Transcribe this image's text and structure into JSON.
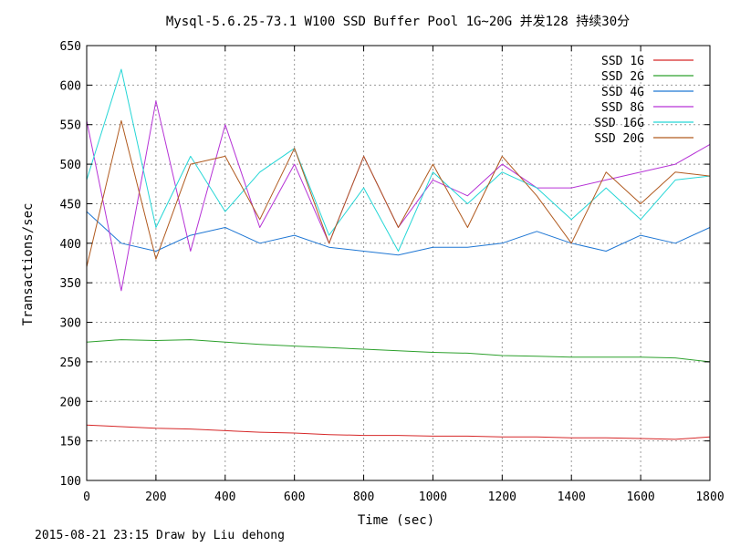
{
  "chart_data": {
    "type": "line",
    "title": "Mysql-5.6.25-73.1 W100 SSD Buffer Pool 1G~20G 并发128 持续30分",
    "xlabel": "Time (sec)",
    "ylabel": "Transactions/sec",
    "xlim": [
      0,
      1800
    ],
    "ylim": [
      100,
      650
    ],
    "xticks": [
      0,
      200,
      400,
      600,
      800,
      1000,
      1200,
      1400,
      1600,
      1800
    ],
    "yticks": [
      100,
      150,
      200,
      250,
      300,
      350,
      400,
      450,
      500,
      550,
      600,
      650
    ],
    "grid": true,
    "legend_position": "top-right",
    "x": [
      0,
      100,
      200,
      300,
      400,
      500,
      600,
      700,
      800,
      900,
      1000,
      1100,
      1200,
      1300,
      1400,
      1500,
      1600,
      1700,
      1800
    ],
    "series": [
      {
        "name": "SSD  1G",
        "color": "#d62728",
        "values": [
          170,
          168,
          166,
          165,
          163,
          161,
          160,
          158,
          157,
          157,
          156,
          156,
          155,
          155,
          154,
          154,
          153,
          152,
          155
        ]
      },
      {
        "name": "SSD  2G",
        "color": "#2ca02c",
        "values": [
          275,
          278,
          277,
          278,
          275,
          272,
          270,
          268,
          266,
          264,
          262,
          261,
          258,
          257,
          256,
          256,
          256,
          255,
          250
        ]
      },
      {
        "name": "SSD  4G",
        "color": "#1f77d4",
        "values": [
          440,
          400,
          390,
          410,
          420,
          400,
          410,
          395,
          390,
          385,
          395,
          395,
          400,
          415,
          400,
          390,
          410,
          400,
          420
        ]
      },
      {
        "name": "SSD  8G",
        "color": "#b633d6",
        "values": [
          555,
          340,
          580,
          390,
          550,
          420,
          500,
          400,
          510,
          420,
          480,
          460,
          500,
          470,
          470,
          480,
          490,
          500,
          525
        ]
      },
      {
        "name": "SSD  16G",
        "color": "#25d6d6",
        "values": [
          480,
          620,
          420,
          510,
          440,
          490,
          520,
          410,
          470,
          390,
          490,
          450,
          490,
          470,
          430,
          470,
          430,
          480,
          485
        ]
      },
      {
        "name": "SSD  20G",
        "color": "#b05a1f",
        "values": [
          370,
          555,
          380,
          500,
          510,
          430,
          520,
          400,
          510,
          420,
          500,
          420,
          510,
          460,
          400,
          490,
          450,
          490,
          485
        ]
      }
    ]
  },
  "footer_text": "2015-08-21 23:15 Draw by Liu dehong"
}
